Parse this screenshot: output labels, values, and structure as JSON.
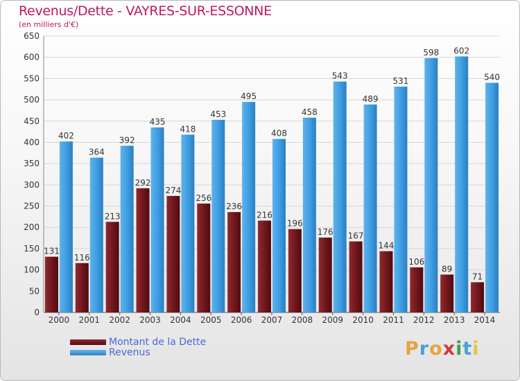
{
  "chart_data": {
    "type": "bar",
    "title": "Revenus/Dette - VAYRES-SUR-ESSONNE",
    "subtitle": "(en milliers d'€)",
    "categories": [
      "2000",
      "2001",
      "2002",
      "2003",
      "2004",
      "2005",
      "2006",
      "2007",
      "2008",
      "2009",
      "2010",
      "2011",
      "2012",
      "2013",
      "2014"
    ],
    "series": [
      {
        "name": "Montant de la Dette",
        "color": "#7a1c22",
        "values": [
          131,
          116,
          213,
          292,
          274,
          256,
          236,
          216,
          196,
          176,
          167,
          144,
          106,
          89,
          71
        ]
      },
      {
        "name": "Revenus",
        "color": "#3f9ee2",
        "values": [
          402,
          364,
          392,
          435,
          418,
          453,
          495,
          408,
          458,
          543,
          489,
          531,
          598,
          602,
          540
        ]
      }
    ],
    "ylim": [
      0,
      650
    ],
    "yticks": [
      0,
      50,
      100,
      150,
      200,
      250,
      300,
      350,
      400,
      450,
      500,
      550,
      600,
      650
    ],
    "grid": true,
    "legend": "bottom-left"
  },
  "logo": {
    "letters": [
      "P",
      "r",
      "o",
      "x",
      "i",
      "t",
      "i"
    ],
    "colors": [
      "#e8a33c",
      "#4aa0d8",
      "#e8a33c",
      "#d23b3b",
      "#3aa05a",
      "#4aa0d8",
      "#e8c43c"
    ]
  }
}
